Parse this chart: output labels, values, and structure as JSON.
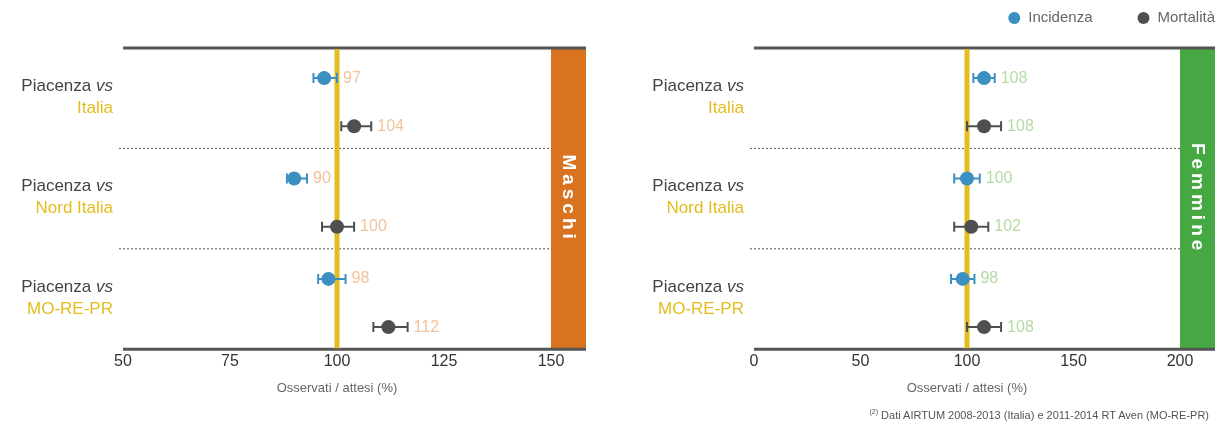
{
  "chart_data": [
    {
      "type": "scatter",
      "orientation": "horizontal",
      "categories": [
        "Piacenza vs\nItalia",
        "Piacenza vs\nNord Italia",
        "Piacenza vs\nMO-RE-PR"
      ],
      "series": [
        {
          "color": "#3b8fc1",
          "values": [
            97,
            90,
            98
          ],
          "value_labels": [
            "97",
            "90",
            "98"
          ],
          "errors": [
            [
              94.5,
              100
            ],
            [
              88.3,
              93
            ],
            [
              95.6,
              102
            ]
          ]
        },
        {
          "color": "#4d4f51",
          "values": [
            104,
            100,
            112
          ],
          "value_labels": [
            "104",
            "100",
            "112"
          ],
          "errors": [
            [
              101,
              108
            ],
            [
              96.5,
              104
            ],
            [
              108.5,
              116.5
            ]
          ]
        }
      ],
      "xlim": [
        50,
        150
      ],
      "xticks": [
        50,
        75,
        100,
        125,
        150
      ],
      "xlabel": "Osservati / attesi (%)",
      "ref_lines": [
        {
          "axis": "x",
          "value": 100,
          "color": "#e3bd1f"
        }
      ],
      "grid": "y",
      "marker": "circle",
      "annotations": [
        "Maschi"
      ]
    },
    {
      "type": "scatter",
      "orientation": "horizontal",
      "categories": [
        "Piacenza vs\nItalia",
        "Piacenza vs\nNord Italia",
        "Piacenza vs\nMO-RE-PR"
      ],
      "series": [
        {
          "name": "Incidenza",
          "color": "#3b8fc1",
          "values": [
            108,
            100,
            98
          ],
          "value_labels": [
            "108",
            "100",
            "98"
          ],
          "errors": [
            5,
            6,
            5.5
          ]
        },
        {
          "name": "Mortalità",
          "color": "#4d4f51",
          "values": [
            108,
            102,
            108
          ],
          "value_labels": [
            "108",
            "102",
            "108"
          ],
          "errors": [
            8,
            8,
            8
          ]
        }
      ],
      "xlim": [
        0,
        200
      ],
      "xticks": [
        0,
        50,
        100,
        150,
        200
      ],
      "xlabel": "Osservati / attesi (%)",
      "ref_lines": [
        {
          "axis": "x",
          "value": 100,
          "color": "#e3bd1f"
        }
      ],
      "grid": "y",
      "marker": "circle",
      "legend": "top right",
      "annotations": [
        "Femmine",
        "$^{(2)}$ Dati AIRTUM 2008-2013 (Italia) e 2011-2014 RT Aven (MO-RE-PR)"
      ]
    }
  ]
}
